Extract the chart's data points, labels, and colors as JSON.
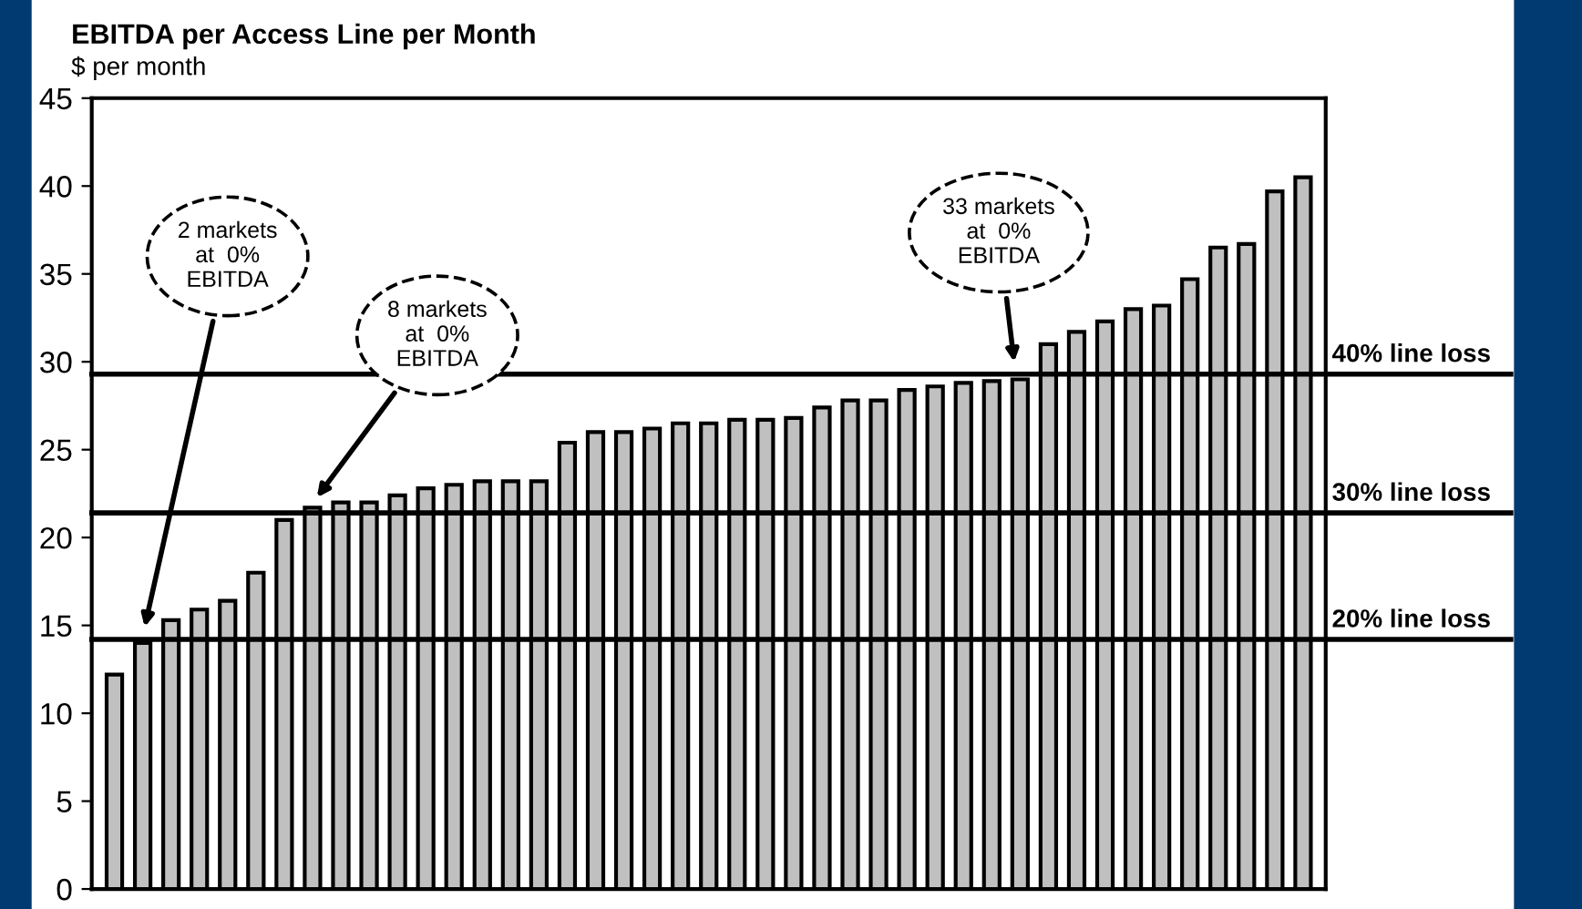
{
  "chart_data": {
    "type": "bar",
    "title": "EBITDA per Access Line per Month",
    "subtitle": "$ per month",
    "categories": [
      null,
      null,
      null,
      null,
      null,
      null,
      null,
      null,
      null,
      null,
      null,
      null,
      null,
      null,
      null,
      null,
      null,
      null,
      null,
      null,
      null,
      null,
      null,
      null,
      null,
      null,
      null,
      null,
      null,
      null,
      null,
      null,
      null,
      null,
      null,
      null,
      null,
      null,
      null,
      null,
      null,
      null,
      null
    ],
    "values": [
      12.2,
      14.0,
      15.3,
      15.9,
      16.4,
      18.0,
      21.0,
      21.7,
      22.0,
      22.0,
      22.4,
      22.8,
      23.0,
      23.2,
      23.2,
      23.2,
      25.4,
      26.0,
      26.0,
      26.2,
      26.5,
      26.5,
      26.7,
      26.7,
      26.8,
      27.4,
      27.8,
      27.8,
      28.4,
      28.6,
      28.8,
      28.9,
      29.0,
      31.0,
      31.7,
      32.3,
      33.0,
      33.2,
      34.7,
      36.5,
      36.7,
      39.7,
      40.5
    ],
    "color": "#c0c0c0",
    "ylim": [
      0,
      45
    ],
    "yticks": [
      0,
      5,
      10,
      15,
      20,
      25,
      30,
      35,
      40,
      45
    ],
    "tick_labels": "y",
    "grid": false,
    "ref_lines": [
      {
        "axis": "y",
        "value": 29.3,
        "label": "40% line loss",
        "color": "#000000"
      },
      {
        "axis": "y",
        "value": 21.4,
        "label": "30% line loss",
        "color": "#000000"
      },
      {
        "axis": "y",
        "value": 14.2,
        "label": "20% line loss",
        "color": "#000000"
      }
    ],
    "annotations": [
      "2 markets\nat  0%\nEBITDA",
      "8 markets\nat  0%\nEBITDA",
      "33 markets\nat  0%\nEBITDA"
    ]
  }
}
